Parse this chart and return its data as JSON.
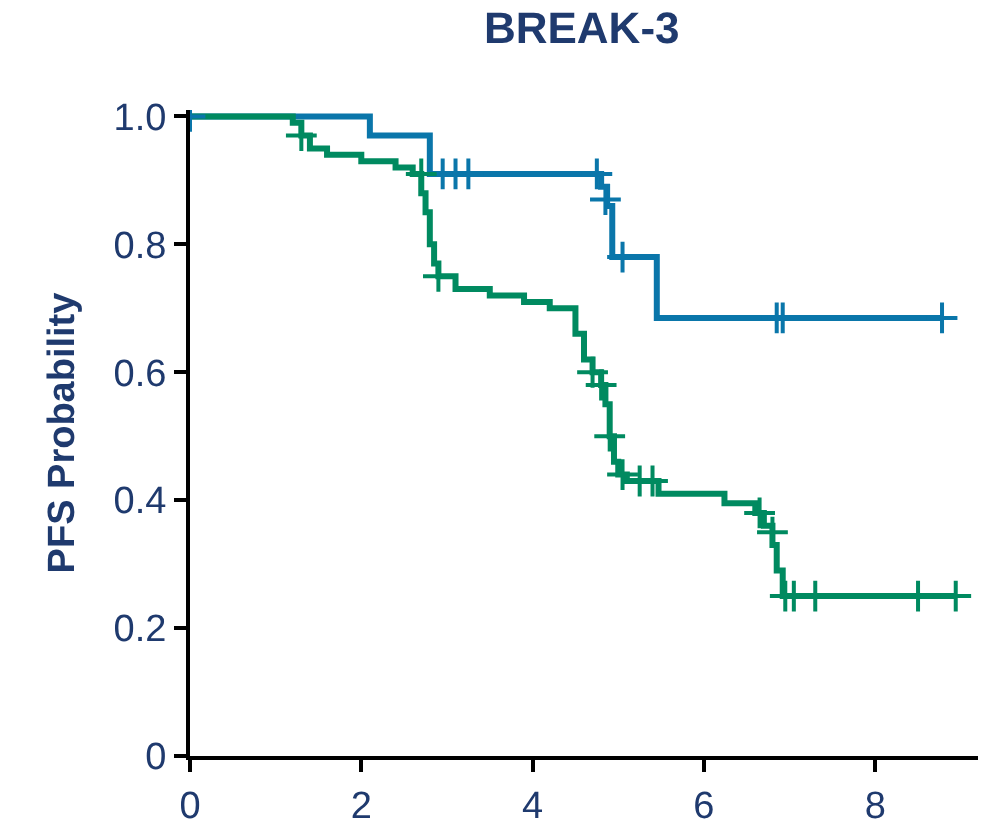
{
  "chart_data": {
    "type": "step",
    "title": "BREAK-3",
    "ylabel": "PFS Probability",
    "xlim": [
      0,
      9.2
    ],
    "ylim": [
      0,
      1.01
    ],
    "xticks": [
      0,
      2,
      4,
      6,
      8
    ],
    "yticks": [
      {
        "value": 0,
        "label": "0"
      },
      0.2,
      0.4,
      0.6,
      0.8,
      {
        "value": 1.0,
        "label": "1.0"
      }
    ],
    "line_style": "solid",
    "series": [
      {
        "color": "#0a76aa",
        "marker": "none",
        "x": [
          0,
          2.1,
          2.8,
          4.8,
          4.87,
          4.93,
          5.45,
          8.78
        ],
        "values": [
          1,
          0.97,
          0.91,
          0.89,
          0.86,
          0.78,
          0.685,
          0.685
        ]
      },
      {
        "color": "#008a60",
        "marker": "none",
        "x": [
          0,
          1.2,
          1.3,
          1.4,
          1.6,
          2.0,
          2.4,
          2.6,
          2.7,
          2.75,
          2.8,
          2.85,
          2.9,
          3.1,
          3.5,
          3.9,
          4.2,
          4.5,
          4.6,
          4.7,
          4.8,
          4.85,
          4.9,
          4.95,
          5.0,
          5.1,
          5.47,
          6.24,
          6.6,
          6.7,
          6.8,
          6.85,
          6.92,
          8.94
        ],
        "values": [
          1,
          0.99,
          0.97,
          0.95,
          0.94,
          0.93,
          0.92,
          0.91,
          0.88,
          0.85,
          0.8,
          0.77,
          0.75,
          0.73,
          0.72,
          0.71,
          0.7,
          0.66,
          0.62,
          0.6,
          0.58,
          0.55,
          0.5,
          0.46,
          0.44,
          0.43,
          0.41,
          0.395,
          0.38,
          0.36,
          0.33,
          0.29,
          0.25,
          0.25
        ]
      },
      {
        "type": "scatter",
        "color": "#0a76aa",
        "marker": "cross",
        "x": [
          0,
          2.95,
          3.1,
          3.25,
          4.75,
          4.85,
          5.05,
          6.85,
          6.92,
          8.78
        ],
        "values": [
          1,
          0.91,
          0.91,
          0.91,
          0.91,
          0.87,
          0.78,
          0.685,
          0.685,
          0.685
        ]
      },
      {
        "type": "scatter",
        "color": "#008a60",
        "marker": "cross",
        "x": [
          1.3,
          2.7,
          2.9,
          4.7,
          4.8,
          4.9,
          5.05,
          5.25,
          5.4,
          6.65,
          6.8,
          6.95,
          7.05,
          7.3,
          8.5,
          8.94
        ],
        "values": [
          0.97,
          0.91,
          0.75,
          0.6,
          0.58,
          0.5,
          0.44,
          0.43,
          0.43,
          0.38,
          0.35,
          0.25,
          0.25,
          0.25,
          0.25,
          0.25
        ]
      }
    ]
  }
}
